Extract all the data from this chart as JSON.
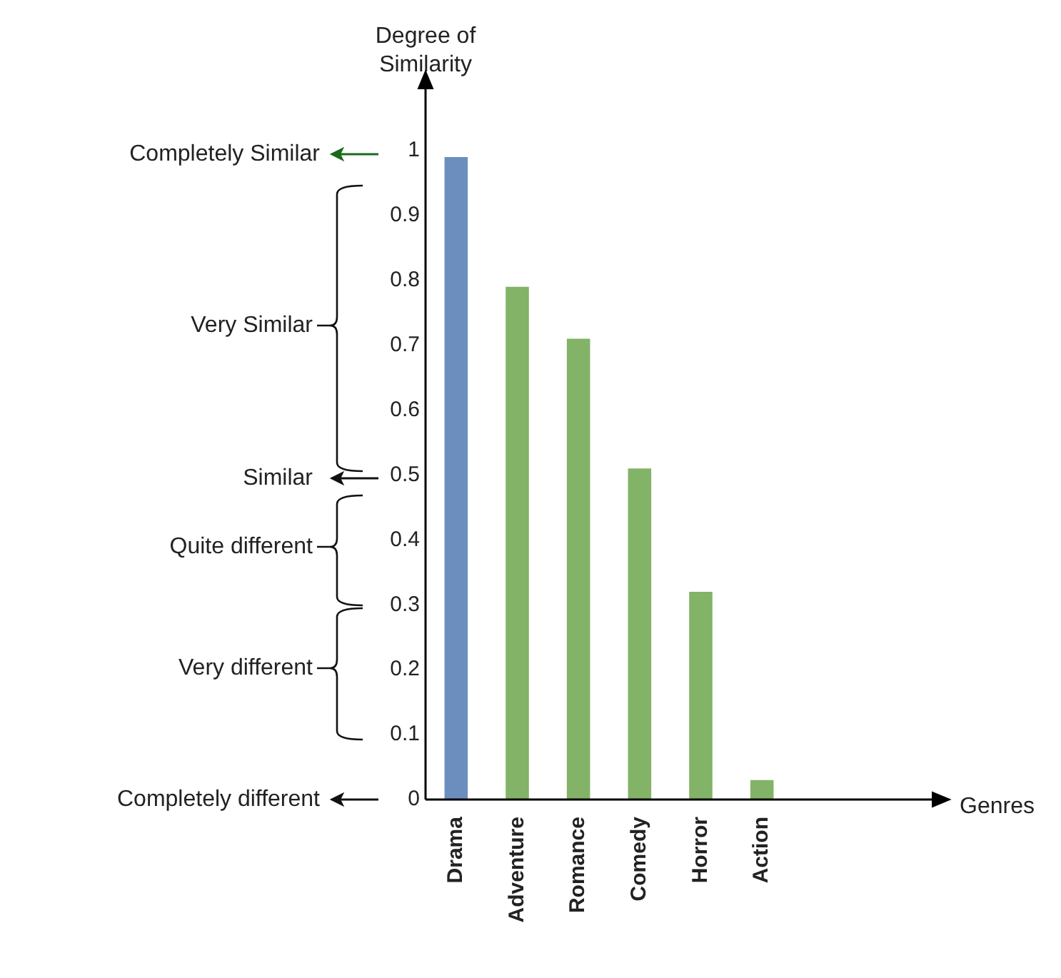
{
  "chart_data": {
    "type": "bar",
    "ylabel": "Degree of Similarity",
    "categories": [
      "Drama",
      "Adventure",
      "Romance",
      "Comedy",
      "Horror",
      "Action"
    ],
    "values": [
      0.99,
      0.79,
      0.71,
      0.51,
      0.32,
      0.03
    ],
    "colors": [
      "#6c8ebf",
      "#82b366",
      "#82b366",
      "#82b366",
      "#82b366",
      "#82b366"
    ],
    "ylim": [
      0,
      1.1
    ],
    "yticks": [
      0,
      0.1,
      0.2,
      0.3,
      0.4,
      0.5,
      0.6,
      0.7,
      0.8,
      0.9,
      1
    ],
    "grid": false,
    "legend": false,
    "annotations": [
      "Completely Similar",
      "Very Similar",
      "Similar",
      "Quite different",
      "Very different",
      "Completely different",
      "Genres"
    ]
  }
}
